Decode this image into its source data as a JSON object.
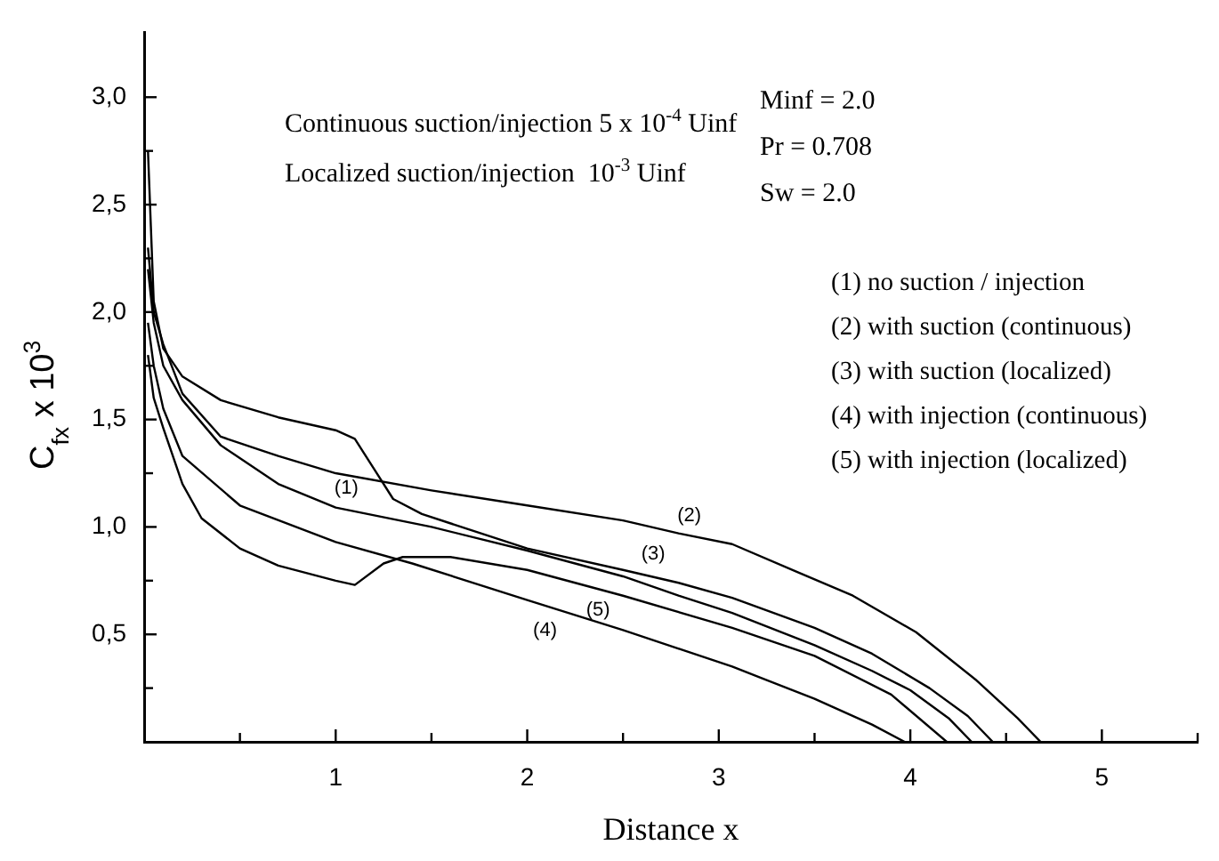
{
  "chart_data": {
    "type": "line",
    "xlabel": "Distance x",
    "ylabel": "C$_{fx}$ x 10$^{3}$",
    "xlim": [
      0,
      5.5
    ],
    "ylim": [
      0,
      3.3
    ],
    "xticks": [
      {
        "value": 0.5,
        "label": null
      },
      1,
      {
        "value": 1.5,
        "label": null
      },
      2,
      {
        "value": 2.5,
        "label": null
      },
      3,
      {
        "value": 3.5,
        "label": null
      },
      4,
      {
        "value": 4.5,
        "label": null
      },
      5,
      {
        "value": 5.5,
        "label": null
      }
    ],
    "yticks": [
      {
        "value": 0.25,
        "label": null
      },
      {
        "value": 0.5,
        "label": "0,5"
      },
      {
        "value": 0.75,
        "label": null
      },
      {
        "value": 1,
        "label": "1,0"
      },
      {
        "value": 1.25,
        "label": null
      },
      {
        "value": 1.5,
        "label": "1,5"
      },
      {
        "value": 1.75,
        "label": null
      },
      {
        "value": 2,
        "label": "2,0"
      },
      {
        "value": 2.25,
        "label": null
      },
      {
        "value": 2.5,
        "label": "2,5"
      },
      {
        "value": 2.75,
        "label": null
      },
      {
        "value": 3,
        "label": "3,0"
      }
    ],
    "grid": false,
    "legend": false,
    "marker": "none",
    "line_style": "solid",
    "series": [
      {
        "color": "#000000",
        "x": [
          0.02,
          0.05,
          0.1,
          0.2,
          0.4,
          0.7,
          1.0,
          1.5,
          2.0,
          2.5,
          2.79,
          3.07,
          3.5,
          3.8,
          4.0,
          4.2,
          4.32
        ],
        "values": [
          2.2,
          1.95,
          1.75,
          1.59,
          1.38,
          1.2,
          1.09,
          1.0,
          0.89,
          0.77,
          0.68,
          0.6,
          0.45,
          0.33,
          0.24,
          0.11,
          0
        ]
      },
      {
        "color": "#000000",
        "x": [
          0.02,
          0.05,
          0.1,
          0.2,
          0.4,
          0.7,
          1.0,
          1.5,
          2.0,
          2.5,
          2.79,
          3.07,
          3.41,
          3.7,
          4.03,
          4.34,
          4.56,
          4.68
        ],
        "values": [
          2.3,
          2.0,
          1.85,
          1.62,
          1.42,
          1.33,
          1.25,
          1.17,
          1.1,
          1.03,
          0.97,
          0.92,
          0.79,
          0.68,
          0.51,
          0.29,
          0.11,
          0
        ]
      },
      {
        "color": "#000000",
        "x": [
          0.02,
          0.05,
          0.1,
          0.2,
          0.4,
          0.7,
          1.0,
          1.1,
          1.2,
          1.3,
          1.45,
          2.0,
          2.5,
          2.79,
          3.07,
          3.5,
          3.8,
          4.1,
          4.3,
          4.43
        ],
        "values": [
          2.75,
          2.05,
          1.83,
          1.7,
          1.59,
          1.51,
          1.45,
          1.41,
          1.27,
          1.13,
          1.06,
          0.9,
          0.8,
          0.74,
          0.67,
          0.53,
          0.41,
          0.25,
          0.12,
          0
        ]
      },
      {
        "color": "#000000",
        "x": [
          0.02,
          0.05,
          0.1,
          0.2,
          0.5,
          1.0,
          1.4,
          2.0,
          2.5,
          3.07,
          3.5,
          3.8,
          3.97
        ],
        "values": [
          1.95,
          1.75,
          1.55,
          1.33,
          1.1,
          0.93,
          0.83,
          0.66,
          0.52,
          0.35,
          0.2,
          0.08,
          0
        ]
      },
      {
        "color": "#000000",
        "x": [
          0.02,
          0.05,
          0.1,
          0.2,
          0.3,
          0.5,
          0.7,
          1.0,
          1.1,
          1.25,
          1.35,
          1.6,
          2.0,
          2.5,
          3.07,
          3.5,
          3.9,
          4.19
        ],
        "values": [
          1.8,
          1.6,
          1.46,
          1.2,
          1.04,
          0.9,
          0.82,
          0.75,
          0.73,
          0.83,
          0.86,
          0.86,
          0.8,
          0.68,
          0.53,
          0.4,
          0.22,
          0
        ]
      }
    ],
    "annotations": [
      "Continuous suction/injection 5 x 10$^{-4}$ Uinf",
      "Localized suction/injection  10$^{-3}$ Uinf",
      "Minf = 2.0",
      "Pr = 0.708",
      "Sw = 2.0",
      "(1) no suction / injection",
      "(2) with suction (continuous)",
      "(3) with suction (localized)",
      "(4) with injection (continuous)",
      "(5) with injection (localized)",
      {
        "text": "(1)",
        "x": 1.0,
        "y": 1.09
      },
      {
        "text": "(2)",
        "x": 2.79,
        "y": 0.97
      },
      {
        "text": "(3)",
        "x": 2.5,
        "y": 0.8
      },
      {
        "text": "(4)",
        "x": 2.0,
        "y": 0.66
      },
      {
        "text": "(5)",
        "x": 2.5,
        "y": 0.68
      }
    ]
  }
}
